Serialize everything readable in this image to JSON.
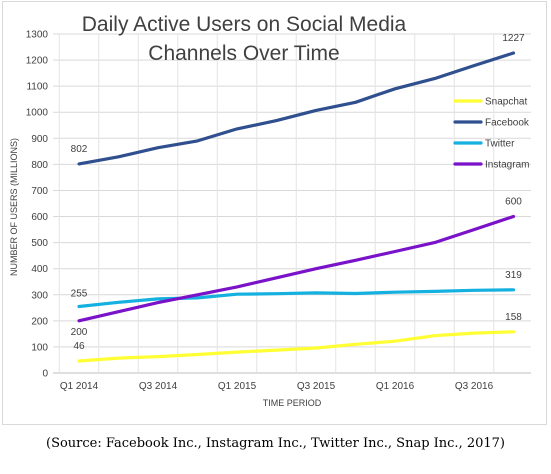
{
  "chart_data": {
    "type": "line",
    "title_lines": [
      "Daily Active Users on Social Media",
      "Channels Over Time"
    ],
    "xlabel": "TIME PERIOD",
    "ylabel": "NUMBER OF USERS (MILLIONS)",
    "ylim": [
      0,
      1300
    ],
    "yticks": [
      0,
      100,
      200,
      300,
      400,
      500,
      600,
      700,
      800,
      900,
      1000,
      1100,
      1200,
      1300
    ],
    "grid": true,
    "legend_position": "right",
    "x": [
      "Q1 2014",
      "Q2 2014",
      "Q3 2014",
      "Q4 2014",
      "Q1 2015",
      "Q2 2015",
      "Q3 2015",
      "Q4 2015",
      "Q1 2016",
      "Q2 2016",
      "Q3 2016",
      "Q4 2016"
    ],
    "x_tick_labels": [
      {
        "index": 0,
        "label": "Q1 2014"
      },
      {
        "index": 2,
        "label": "Q3 2014"
      },
      {
        "index": 4,
        "label": "Q1 2015"
      },
      {
        "index": 6,
        "label": "Q3 2015"
      },
      {
        "index": 8,
        "label": "Q1 2016"
      },
      {
        "index": 10,
        "label": "Q3 2016"
      }
    ],
    "series": [
      {
        "name": "Snapchat",
        "color": "#ffff33",
        "values": [
          46,
          57,
          63,
          71,
          80,
          88,
          96,
          110,
          122,
          143,
          153,
          158
        ]
      },
      {
        "name": "Facebook",
        "color": "#2f4f8f",
        "values": [
          802,
          829,
          864,
          890,
          936,
          968,
          1007,
          1038,
          1090,
          1129,
          1179,
          1227
        ]
      },
      {
        "name": "Twitter",
        "color": "#14b0df",
        "values": [
          255,
          271,
          284,
          288,
          302,
          304,
          307,
          305,
          310,
          313,
          317,
          319
        ]
      },
      {
        "name": "Instagram",
        "color": "#7a12c9",
        "values": [
          200,
          235,
          270,
          300,
          330,
          365,
          400,
          432,
          466,
          500,
          550,
          600
        ]
      }
    ],
    "data_labels": [
      {
        "series": "Facebook",
        "index": 0,
        "text": "802"
      },
      {
        "series": "Facebook",
        "index": 11,
        "text": "1227"
      },
      {
        "series": "Instagram",
        "index": 0,
        "text": "200"
      },
      {
        "series": "Instagram",
        "index": 11,
        "text": "600"
      },
      {
        "series": "Twitter",
        "index": 0,
        "text": "255"
      },
      {
        "series": "Twitter",
        "index": 11,
        "text": "319"
      },
      {
        "series": "Snapchat",
        "index": 0,
        "text": "46"
      },
      {
        "series": "Snapchat",
        "index": 11,
        "text": "158"
      }
    ]
  },
  "source_note": "(Source: Facebook Inc., Instagram Inc., Twitter Inc., Snap Inc., 2017)"
}
